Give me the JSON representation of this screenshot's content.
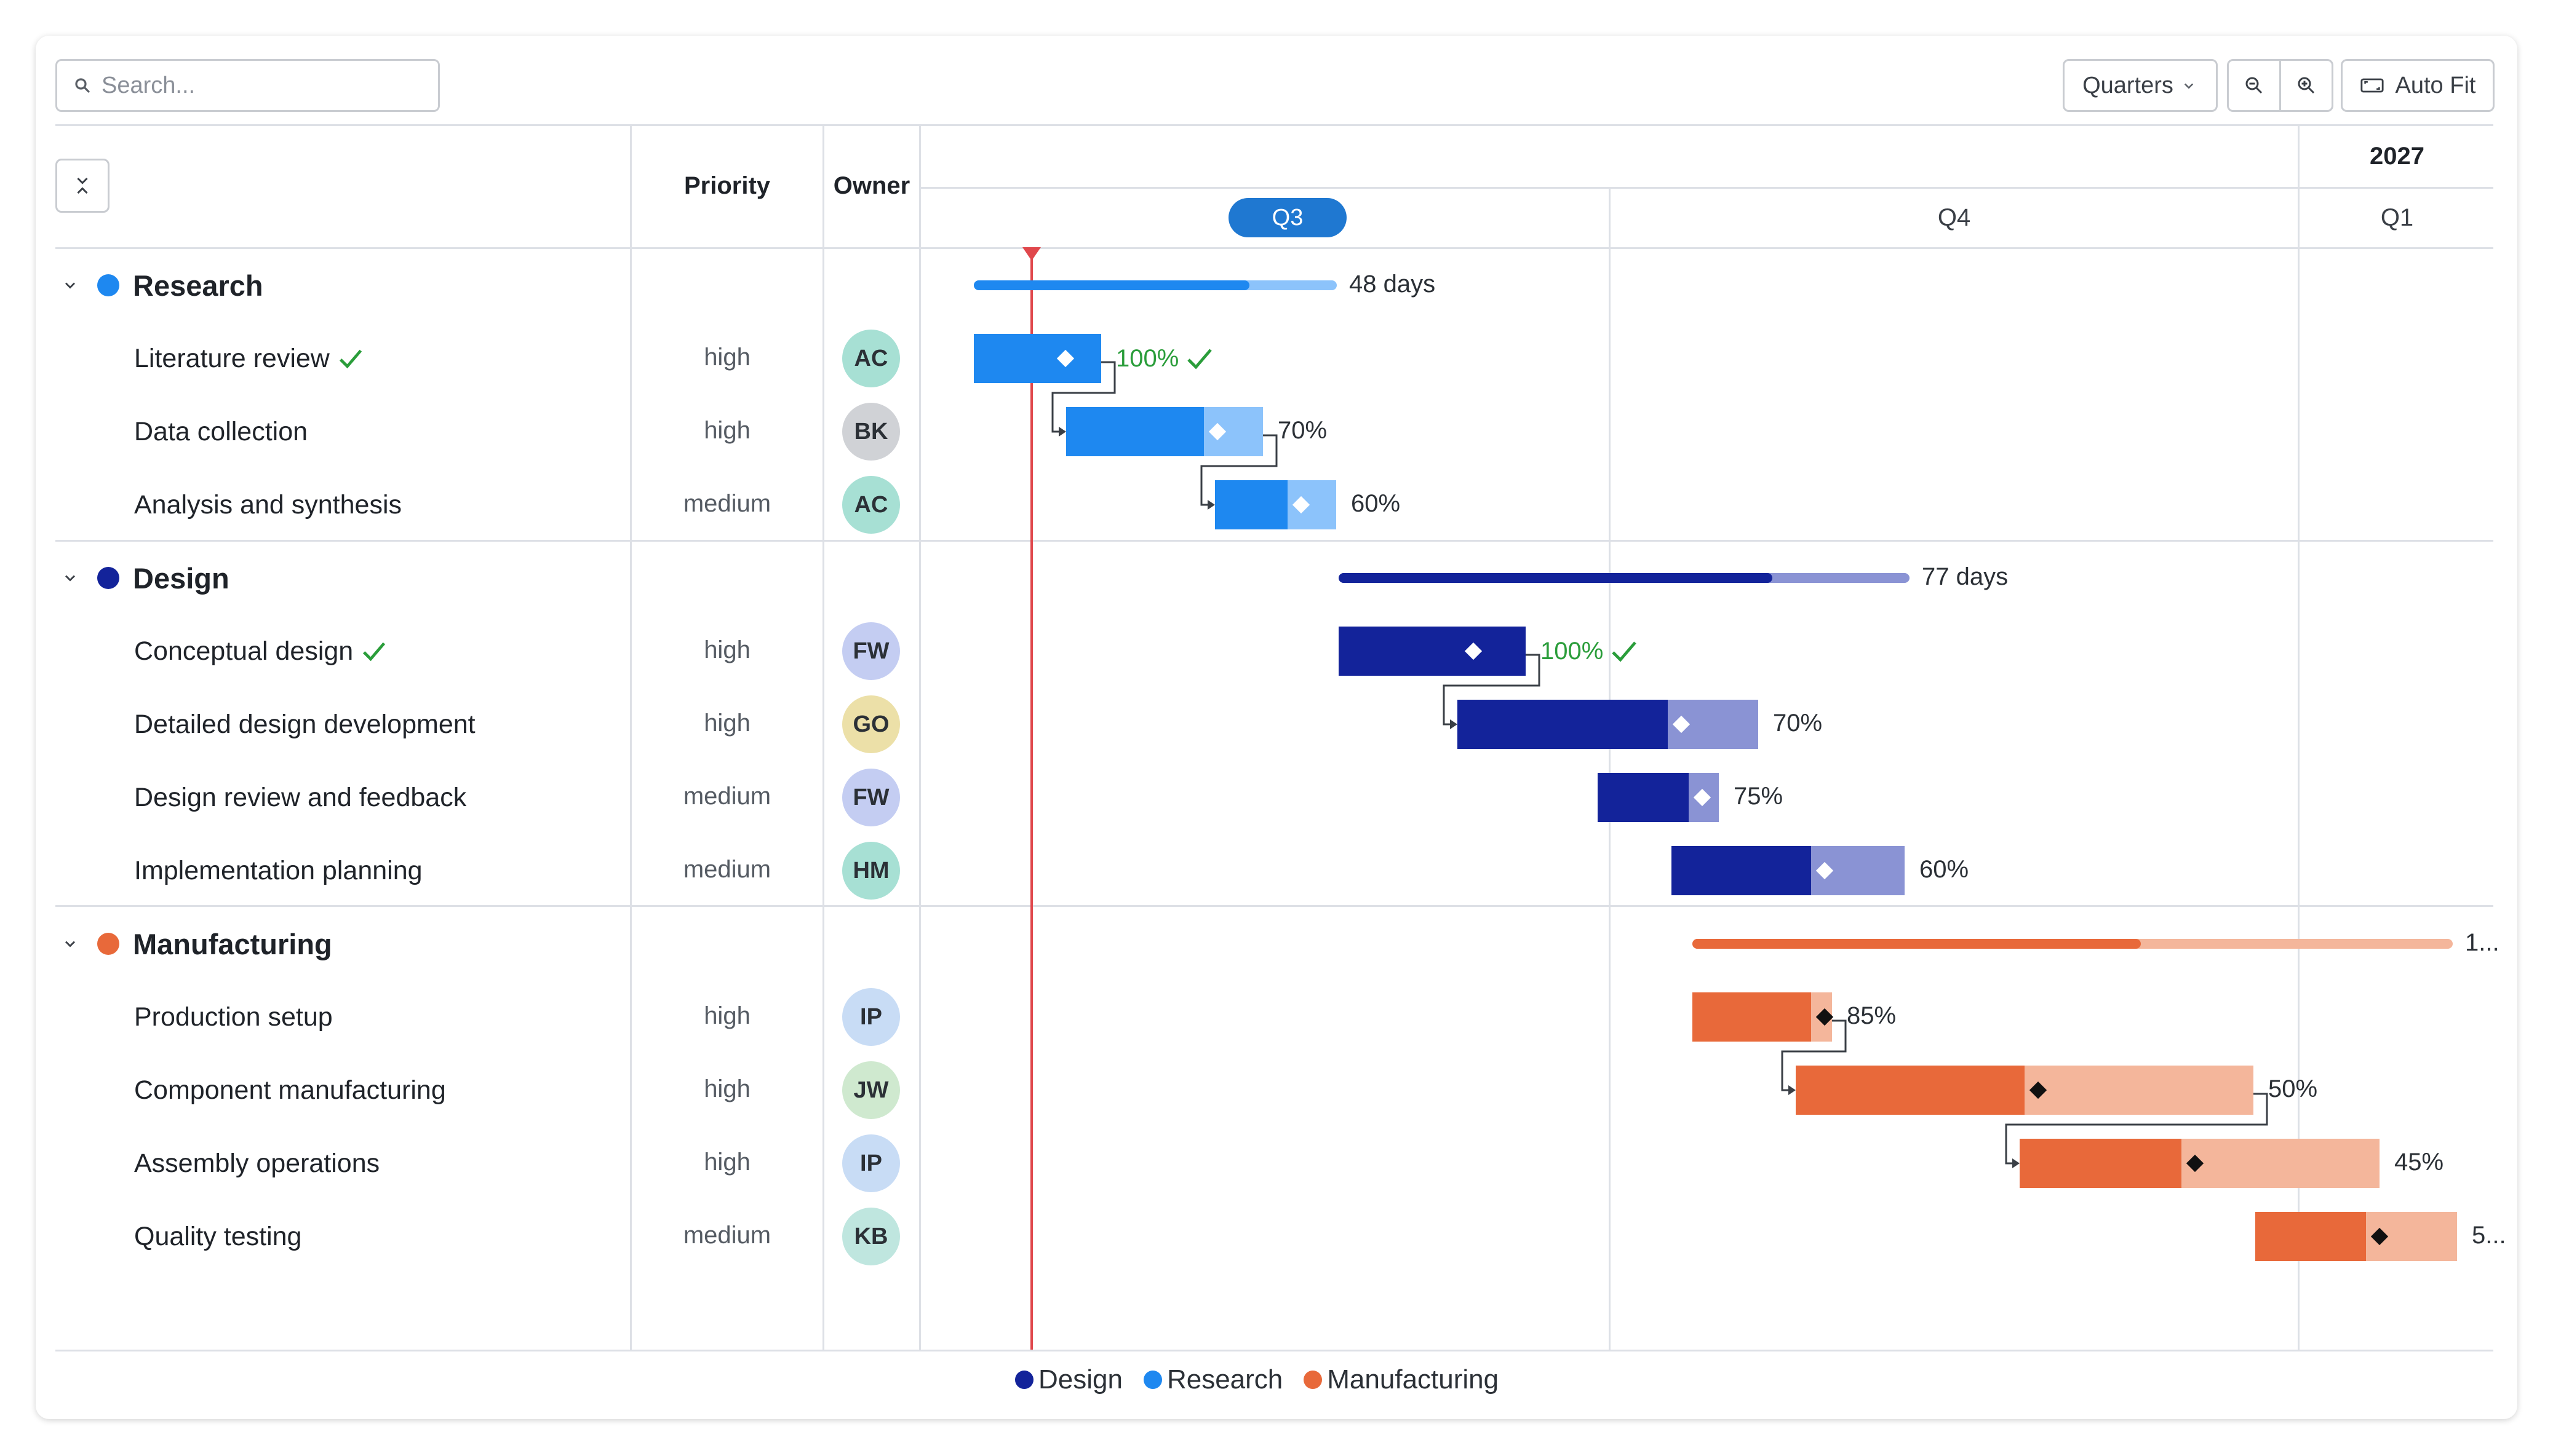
{
  "toolbar": {
    "search_placeholder": "Search...",
    "scale_label": "Quarters",
    "auto_fit_label": "Auto Fit"
  },
  "columns": {
    "priority": "Priority",
    "owner": "Owner"
  },
  "timeline": {
    "year": "2027",
    "quarters": [
      "Q3",
      "Q4",
      "Q1"
    ]
  },
  "colors": {
    "research": "#1e88f0",
    "research_light": "#8cc3fb",
    "design": "#13239a",
    "design_light": "#8a93d4",
    "manufacturing": "#e8693a",
    "manufacturing_light": "#f4b69b",
    "today_line": "#e0474c",
    "complete": "#2a9d3a"
  },
  "groups": [
    {
      "name": "Research",
      "color": "#1e88f0",
      "summary": "48 days",
      "tasks": [
        {
          "name": "Literature review",
          "done": true,
          "priority": "high",
          "owner": "AC",
          "progress_label": "100%"
        },
        {
          "name": "Data collection",
          "done": false,
          "priority": "high",
          "owner": "BK",
          "progress_label": "70%"
        },
        {
          "name": "Analysis and synthesis",
          "done": false,
          "priority": "medium",
          "owner": "AC",
          "progress_label": "60%"
        }
      ]
    },
    {
      "name": "Design",
      "color": "#13239a",
      "summary": "77 days",
      "tasks": [
        {
          "name": "Conceptual design",
          "done": true,
          "priority": "high",
          "owner": "FW",
          "progress_label": "100%"
        },
        {
          "name": "Detailed design development",
          "done": false,
          "priority": "high",
          "owner": "GO",
          "progress_label": "70%"
        },
        {
          "name": "Design review and feedback",
          "done": false,
          "priority": "medium",
          "owner": "FW",
          "progress_label": "75%"
        },
        {
          "name": "Implementation planning",
          "done": false,
          "priority": "medium",
          "owner": "HM",
          "progress_label": "60%"
        }
      ]
    },
    {
      "name": "Manufacturing",
      "color": "#e8693a",
      "summary": "1...",
      "tasks": [
        {
          "name": "Production setup",
          "done": false,
          "priority": "high",
          "owner": "IP",
          "progress_label": "85%"
        },
        {
          "name": "Component manufacturing",
          "done": false,
          "priority": "high",
          "owner": "JW",
          "progress_label": "50%"
        },
        {
          "name": "Assembly operations",
          "done": false,
          "priority": "high",
          "owner": "IP",
          "progress_label": "45%"
        },
        {
          "name": "Quality testing",
          "done": false,
          "priority": "medium",
          "owner": "KB",
          "progress_label": "5..."
        }
      ]
    }
  ],
  "legend": [
    "Design",
    "Research",
    "Manufacturing"
  ],
  "progress": {
    "research_summary": 0.76,
    "design_summary": 0.76,
    "manufacturing_summary": 0.59,
    "tasks": [
      1.0,
      0.7,
      0.6,
      1.0,
      0.7,
      0.75,
      0.6,
      0.85,
      0.5,
      0.45,
      0.55
    ]
  }
}
